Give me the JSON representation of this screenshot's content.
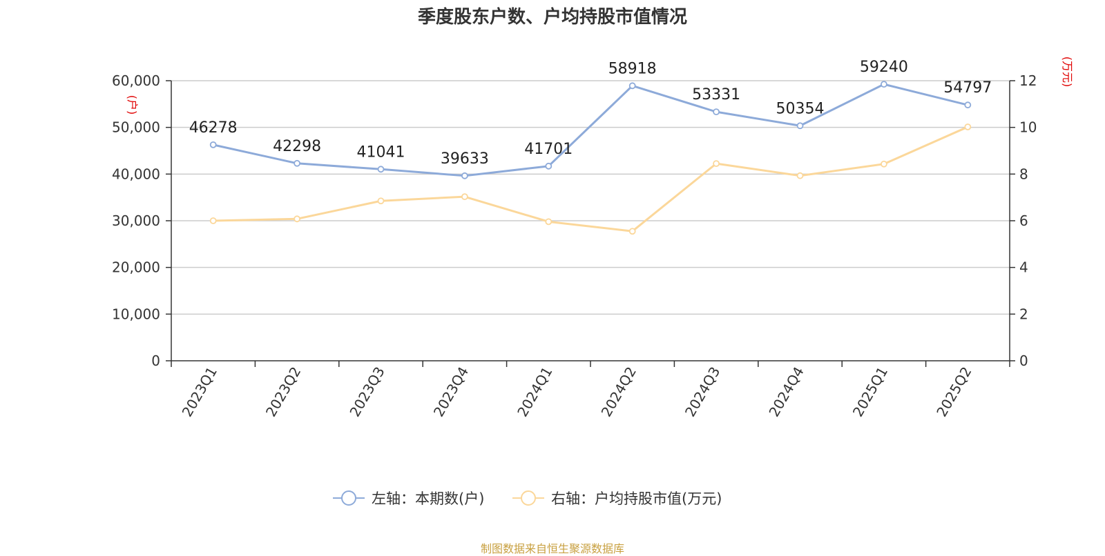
{
  "title": "季度股东户数、户均持股市值情况",
  "source": "制图数据来自恒生聚源数据库",
  "colors": {
    "left_series": "#8daad9",
    "right_series": "#fbd79a",
    "axis_unit": "#e00000",
    "grid": "#cccccc",
    "axis": "#333333"
  },
  "chart_data": {
    "type": "line",
    "title": "季度股东户数、户均持股市值情况",
    "categories": [
      "2023Q1",
      "2023Q2",
      "2023Q3",
      "2023Q4",
      "2024Q1",
      "2024Q2",
      "2024Q3",
      "2024Q4",
      "2025Q1",
      "2025Q2"
    ],
    "left_axis": {
      "unit": "(户)",
      "ylim": [
        0,
        60000
      ],
      "ticks": [
        0,
        10000,
        20000,
        30000,
        40000,
        50000,
        60000
      ],
      "tick_labels": [
        "0",
        "10,000",
        "20,000",
        "30,000",
        "40,000",
        "50,000",
        "60,000"
      ]
    },
    "right_axis": {
      "unit": "(万元)",
      "ylim": [
        0,
        12
      ],
      "ticks": [
        0,
        2,
        4,
        6,
        8,
        10,
        12
      ],
      "tick_labels": [
        "0",
        "2",
        "4",
        "6",
        "8",
        "10",
        "12"
      ]
    },
    "series": [
      {
        "name": "左轴：本期数(户)",
        "axis": "left",
        "values": [
          46278,
          42298,
          41041,
          39633,
          41701,
          58918,
          53331,
          50354,
          59240,
          54797
        ],
        "labels": [
          "46278",
          "42298",
          "41041",
          "39633",
          "41701",
          "58918",
          "53331",
          "50354",
          "59240",
          "54797"
        ]
      },
      {
        "name": "右轴：户均持股市值(万元)",
        "axis": "right",
        "values": [
          6.0,
          6.08,
          6.85,
          7.03,
          5.96,
          5.55,
          8.45,
          7.93,
          8.43,
          10.02
        ]
      }
    ],
    "grid": true,
    "legend_position": "bottom-center"
  }
}
